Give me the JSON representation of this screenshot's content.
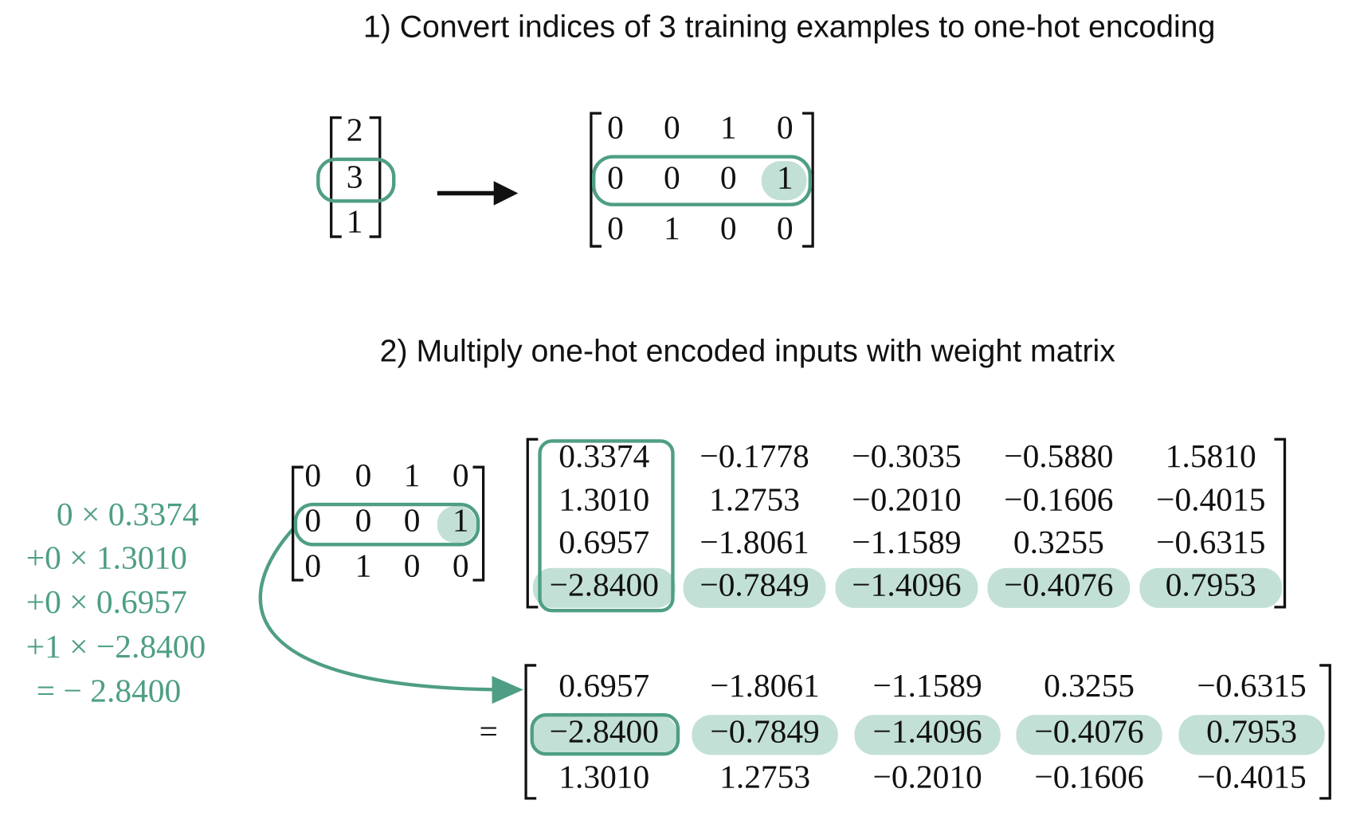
{
  "step1": {
    "title": "1) Convert indices of 3 training examples to one-hot encoding",
    "indices": [
      "2",
      "3",
      "1"
    ],
    "onehot": [
      [
        "0",
        "0",
        "1",
        "0"
      ],
      [
        "0",
        "0",
        "0",
        "1"
      ],
      [
        "0",
        "1",
        "0",
        "0"
      ]
    ]
  },
  "step2": {
    "title": "2) Multiply one-hot encoded inputs with weight matrix",
    "onehot": [
      [
        "0",
        "0",
        "1",
        "0"
      ],
      [
        "0",
        "0",
        "0",
        "1"
      ],
      [
        "0",
        "1",
        "0",
        "0"
      ]
    ],
    "weights": [
      [
        "0.3374",
        "−0.1778",
        "−0.3035",
        "−0.5880",
        "1.5810"
      ],
      [
        "1.3010",
        "1.2753",
        "−0.2010",
        "−0.1606",
        "−0.4015"
      ],
      [
        "0.6957",
        "−1.8061",
        "−1.1589",
        "0.3255",
        "−0.6315"
      ],
      [
        "−2.8400",
        "−0.7849",
        "−1.4096",
        "−0.4076",
        "0.7953"
      ]
    ],
    "equals": "=",
    "result": [
      [
        "0.6957",
        "−1.8061",
        "−1.1589",
        "0.3255",
        "−0.6315"
      ],
      [
        "−2.8400",
        "−0.7849",
        "−1.4096",
        "−0.4076",
        "0.7953"
      ],
      [
        "1.3010",
        "1.2753",
        "−0.2010",
        "−0.1606",
        "−0.4015"
      ]
    ],
    "calculation": [
      "0 × 0.3374",
      "+0 × 1.3010",
      "+0 × 0.6957",
      "+1 × −2.8400",
      "= − 2.8400"
    ]
  }
}
